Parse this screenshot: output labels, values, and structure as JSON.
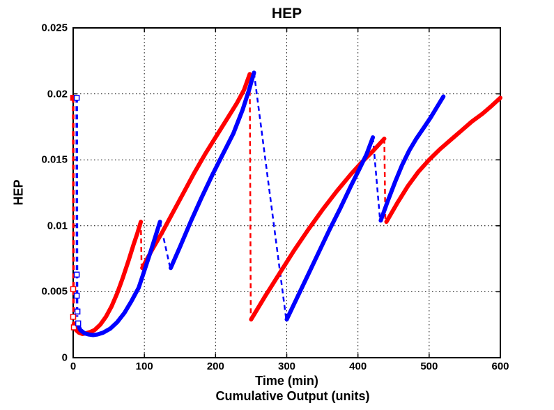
{
  "chart_data": {
    "type": "line",
    "title": "HEP",
    "xlabel": "Time (min)",
    "xlabel2": "Cumulative Output (units)",
    "ylabel": "HEP",
    "xlim": [
      0,
      600
    ],
    "ylim": [
      0,
      0.025
    ],
    "xticks": {
      "values": [
        0,
        100,
        200,
        300,
        400,
        500,
        600
      ],
      "labels": [
        "0",
        "100",
        "200",
        "300",
        "400",
        "500",
        "600"
      ]
    },
    "yticks": {
      "values": [
        0,
        0.005,
        0.01,
        0.015,
        0.02,
        0.025
      ],
      "labels": [
        "0",
        "0.005",
        "0.01",
        "0.015",
        "0.02",
        "0.025"
      ]
    },
    "grid": "dotted",
    "legend": "none",
    "colors": {
      "series_red": "#ff0000",
      "series_blue": "#0000ff",
      "grid": "#000000",
      "axis": "#000000",
      "background": "#ffffff"
    },
    "series": [
      {
        "name": "red-start-dashed",
        "color": "#ff0000",
        "style": "dashed",
        "width": 3.5,
        "segments": [
          [
            [
              0,
              0.0197
            ],
            [
              0.5,
              0.003
            ]
          ]
        ]
      },
      {
        "name": "red-drop-dashed",
        "color": "#ff0000",
        "style": "dashed",
        "width": 2.5,
        "segments": [
          [
            [
              95,
              0.0103
            ],
            [
              96,
              0.007
            ]
          ],
          [
            [
              248,
              0.0215
            ],
            [
              249.5,
              0.003
            ]
          ],
          [
            [
              437,
              0.0166
            ],
            [
              438.5,
              0.0104
            ]
          ]
        ]
      },
      {
        "name": "blue-start-dashed",
        "color": "#0000ff",
        "style": "dashed",
        "width": 3.5,
        "segments": [
          [
            [
              5,
              0.0197
            ],
            [
              5.5,
              0.0031
            ]
          ]
        ]
      },
      {
        "name": "blue-drop-dashed",
        "color": "#0000ff",
        "style": "dashed",
        "width": 2.5,
        "segments": [
          [
            [
              122,
              0.0103
            ],
            [
              136,
              0.0069
            ]
          ],
          [
            [
              254,
              0.0216
            ],
            [
              299,
              0.003
            ]
          ],
          [
            [
              421,
              0.0167
            ],
            [
              431,
              0.0105
            ]
          ]
        ]
      },
      {
        "name": "red-solid",
        "color": "#ff0000",
        "style": "solid",
        "width": 6,
        "segments": [
          [
            [
              1,
              0.0026
            ],
            [
              4,
              0.0021
            ],
            [
              8,
              0.0019
            ],
            [
              13,
              0.0018
            ],
            [
              18,
              0.00185
            ],
            [
              24,
              0.00195
            ],
            [
              30,
              0.0021
            ],
            [
              38,
              0.0025
            ],
            [
              46,
              0.0031
            ],
            [
              54,
              0.0039
            ],
            [
              62,
              0.0049
            ],
            [
              70,
              0.0061
            ],
            [
              78,
              0.0074
            ],
            [
              85,
              0.0086
            ],
            [
              90,
              0.0094
            ],
            [
              95,
              0.0103
            ]
          ],
          [
            [
              97,
              0.0068
            ],
            [
              110,
              0.0081
            ],
            [
              125,
              0.0095
            ],
            [
              140,
              0.011
            ],
            [
              155,
              0.0125
            ],
            [
              170,
              0.014
            ],
            [
              185,
              0.0154
            ],
            [
              200,
              0.0167
            ],
            [
              215,
              0.018
            ],
            [
              230,
              0.0193
            ],
            [
              240,
              0.0203
            ],
            [
              248,
              0.0215
            ]
          ],
          [
            [
              250,
              0.0029
            ],
            [
              270,
              0.0047
            ],
            [
              290,
              0.0064
            ],
            [
              310,
              0.0081
            ],
            [
              330,
              0.0097
            ],
            [
              350,
              0.0112
            ],
            [
              370,
              0.0126
            ],
            [
              390,
              0.0139
            ],
            [
              405,
              0.0148
            ],
            [
              420,
              0.0156
            ],
            [
              437,
              0.0166
            ]
          ],
          [
            [
              440,
              0.0103
            ],
            [
              455,
              0.0117
            ],
            [
              470,
              0.013
            ],
            [
              485,
              0.0141
            ],
            [
              500,
              0.015
            ],
            [
              515,
              0.0158
            ],
            [
              530,
              0.0165
            ],
            [
              545,
              0.0172
            ],
            [
              560,
              0.0179
            ],
            [
              575,
              0.0185
            ],
            [
              588,
              0.0191
            ],
            [
              600,
              0.0197
            ]
          ]
        ]
      },
      {
        "name": "blue-solid",
        "color": "#0000ff",
        "style": "solid",
        "width": 6,
        "segments": [
          [
            [
              6,
              0.0026
            ],
            [
              10,
              0.0021
            ],
            [
              16,
              0.00185
            ],
            [
              22,
              0.00176
            ],
            [
              28,
              0.00172
            ],
            [
              34,
              0.00176
            ],
            [
              42,
              0.0019
            ],
            [
              52,
              0.0022
            ],
            [
              62,
              0.0027
            ],
            [
              72,
              0.0034
            ],
            [
              82,
              0.0043
            ],
            [
              92,
              0.0053
            ],
            [
              100,
              0.0066
            ],
            [
              108,
              0.0079
            ],
            [
              115,
              0.0091
            ],
            [
              122,
              0.0103
            ]
          ],
          [
            [
              137,
              0.0068
            ],
            [
              150,
              0.0084
            ],
            [
              165,
              0.0103
            ],
            [
              180,
              0.0121
            ],
            [
              195,
              0.0138
            ],
            [
              210,
              0.0154
            ],
            [
              225,
              0.017
            ],
            [
              238,
              0.0188
            ],
            [
              247,
              0.0203
            ],
            [
              254,
              0.0216
            ]
          ],
          [
            [
              300,
              0.0029
            ],
            [
              315,
              0.0046
            ],
            [
              330,
              0.0063
            ],
            [
              345,
              0.008
            ],
            [
              360,
              0.0097
            ],
            [
              375,
              0.0113
            ],
            [
              390,
              0.013
            ],
            [
              402,
              0.0143
            ],
            [
              412,
              0.0154
            ],
            [
              421,
              0.0167
            ]
          ],
          [
            [
              432,
              0.0104
            ],
            [
              442,
              0.0119
            ],
            [
              452,
              0.0133
            ],
            [
              462,
              0.0146
            ],
            [
              472,
              0.0157
            ],
            [
              482,
              0.0166
            ],
            [
              492,
              0.0174
            ],
            [
              502,
              0.0182
            ],
            [
              511,
              0.019
            ],
            [
              520,
              0.0198
            ]
          ]
        ]
      }
    ],
    "markers": [
      {
        "name": "red-start-marker-filled",
        "color": "#ff0000",
        "filled": true,
        "points": [
          [
            0,
            0.0197
          ]
        ]
      },
      {
        "name": "red-start-markers-open",
        "color": "#ff0000",
        "filled": false,
        "points": [
          [
            0,
            0.0052
          ],
          [
            0,
            0.0031
          ],
          [
            1,
            0.0023
          ]
        ]
      },
      {
        "name": "blue-start-markers-open",
        "color": "#0000ff",
        "filled": false,
        "points": [
          [
            5,
            0.0197
          ],
          [
            5,
            0.0063
          ],
          [
            5,
            0.0047
          ],
          [
            6,
            0.0035
          ],
          [
            7,
            0.0026
          ]
        ]
      }
    ]
  }
}
